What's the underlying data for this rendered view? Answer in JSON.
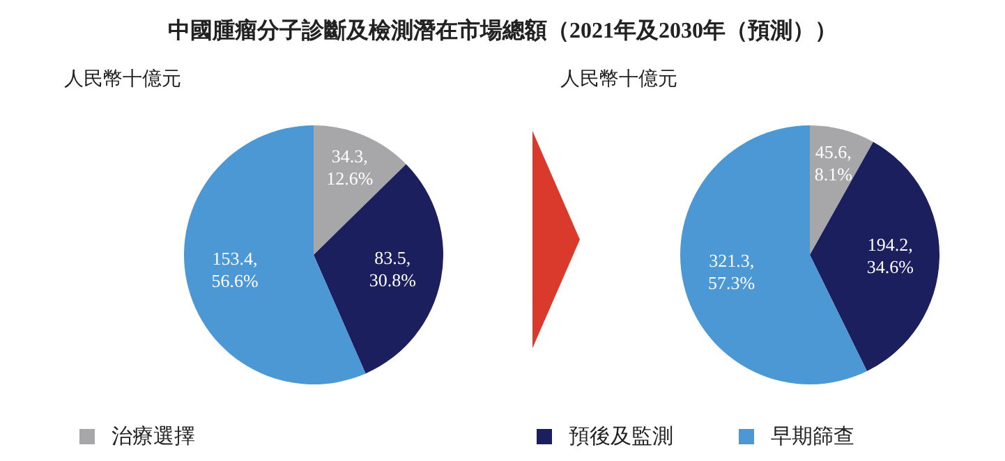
{
  "chart_data": [
    {
      "type": "pie",
      "title": "中國腫瘤分子診斷及檢測潛在市場總額（2021年及2030年（預測））",
      "subtitle": "人民幣十億元",
      "categories": [
        "治療選擇",
        "預後及監測",
        "早期篩查"
      ],
      "values": [
        34.3,
        83.5,
        153.4
      ],
      "colors": [
        "#a7a7a9",
        "#1b1f5e",
        "#4b98d4"
      ],
      "value_labels": [
        "34.3, 12.6%",
        "83.5, 30.8%",
        "153.4, 56.6%"
      ],
      "legend": "bottom"
    },
    {
      "type": "pie",
      "subtitle": "人民幣十億元",
      "categories": [
        null,
        null,
        null
      ],
      "values": [
        45.6,
        194.2,
        321.3
      ],
      "colors": [
        "#a7a7a9",
        "#1b1f5e",
        "#4b98d4"
      ],
      "value_labels": [
        "45.6, 8.1%",
        "194.2, 34.6%",
        "321.3, 57.3%"
      ]
    }
  ]
}
